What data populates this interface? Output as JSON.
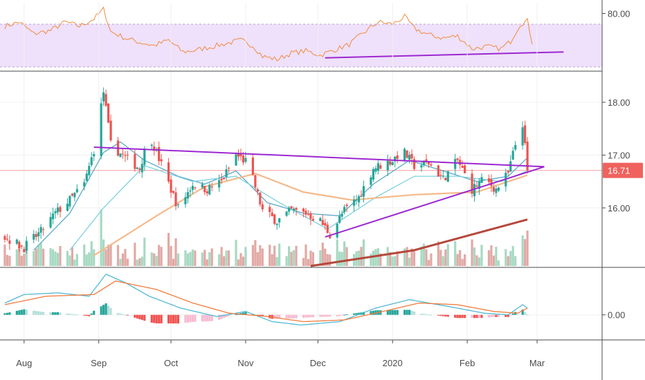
{
  "chart_data": [
    {
      "panel": "rsi",
      "type": "line",
      "y_tick_labels": [
        "80.00"
      ],
      "y_ticks": [
        80
      ],
      "ylim": [
        28,
        90
      ],
      "band": [
        30,
        70
      ],
      "band_color": "#efe0fb",
      "line_color": "#f08a3c",
      "trendline": {
        "x": [
          "2019-12-04",
          "2020-03-12"
        ],
        "y": [
          38.5,
          44.0
        ],
        "color": "#9c27d0"
      },
      "series": [
        {
          "x": "2019-07-24",
          "y": 68
        },
        {
          "x": "2019-07-30",
          "y": 72
        },
        {
          "x": "2019-08-05",
          "y": 61
        },
        {
          "x": "2019-08-12",
          "y": 64
        },
        {
          "x": "2019-08-18",
          "y": 72
        },
        {
          "x": "2019-08-24",
          "y": 68
        },
        {
          "x": "2019-08-30",
          "y": 75
        },
        {
          "x": "2019-09-03",
          "y": 84
        },
        {
          "x": "2019-09-06",
          "y": 63
        },
        {
          "x": "2019-09-12",
          "y": 57
        },
        {
          "x": "2019-09-18",
          "y": 53
        },
        {
          "x": "2019-09-24",
          "y": 50
        },
        {
          "x": "2019-09-30",
          "y": 55
        },
        {
          "x": "2019-10-06",
          "y": 44
        },
        {
          "x": "2019-10-12",
          "y": 46
        },
        {
          "x": "2019-10-18",
          "y": 49
        },
        {
          "x": "2019-10-24",
          "y": 52
        },
        {
          "x": "2019-10-30",
          "y": 55
        },
        {
          "x": "2019-11-04",
          "y": 50
        },
        {
          "x": "2019-11-08",
          "y": 40
        },
        {
          "x": "2019-11-14",
          "y": 37
        },
        {
          "x": "2019-11-20",
          "y": 43
        },
        {
          "x": "2019-11-26",
          "y": 45
        },
        {
          "x": "2019-12-02",
          "y": 41
        },
        {
          "x": "2019-12-08",
          "y": 46
        },
        {
          "x": "2019-12-14",
          "y": 51
        },
        {
          "x": "2019-12-20",
          "y": 62
        },
        {
          "x": "2019-12-26",
          "y": 72
        },
        {
          "x": "2020-01-01",
          "y": 70
        },
        {
          "x": "2020-01-06",
          "y": 77
        },
        {
          "x": "2020-01-10",
          "y": 66
        },
        {
          "x": "2020-01-16",
          "y": 60
        },
        {
          "x": "2020-01-22",
          "y": 57
        },
        {
          "x": "2020-01-28",
          "y": 59
        },
        {
          "x": "2020-02-03",
          "y": 47
        },
        {
          "x": "2020-02-09",
          "y": 49
        },
        {
          "x": "2020-02-15",
          "y": 47
        },
        {
          "x": "2020-02-19",
          "y": 54
        },
        {
          "x": "2020-02-23",
          "y": 70
        },
        {
          "x": "2020-02-26",
          "y": 73
        },
        {
          "x": "2020-02-28",
          "y": 53
        }
      ]
    },
    {
      "panel": "price",
      "type": "candlestick",
      "y_tick_labels": [
        "18.00",
        "17.00",
        "16.00"
      ],
      "y_ticks": [
        18,
        17,
        16
      ],
      "ylim": [
        14.9,
        18.55
      ],
      "last_price_label": "16.71",
      "last_price": 16.71,
      "up_color": "#26a69a",
      "down_color": "#ef5350",
      "last_price_color": "#f0625d",
      "anchors": [
        {
          "x": "2019-07-24",
          "close": 15.45
        },
        {
          "x": "2019-08-01",
          "close": 15.25
        },
        {
          "x": "2019-08-08",
          "close": 15.55
        },
        {
          "x": "2019-08-14",
          "close": 15.9
        },
        {
          "x": "2019-08-20",
          "close": 16.15
        },
        {
          "x": "2019-08-26",
          "close": 16.45
        },
        {
          "x": "2019-08-30",
          "close": 17.1
        },
        {
          "x": "2019-09-03",
          "close": 18.2
        },
        {
          "x": "2019-09-06",
          "close": 17.2
        },
        {
          "x": "2019-09-12",
          "close": 16.95
        },
        {
          "x": "2019-09-18",
          "close": 16.75
        },
        {
          "x": "2019-09-22",
          "close": 17.4
        },
        {
          "x": "2019-09-28",
          "close": 16.7
        },
        {
          "x": "2019-10-04",
          "close": 16.0
        },
        {
          "x": "2019-10-10",
          "close": 16.45
        },
        {
          "x": "2019-10-16",
          "close": 16.35
        },
        {
          "x": "2019-10-22",
          "close": 16.5
        },
        {
          "x": "2019-10-28",
          "close": 17.0
        },
        {
          "x": "2019-11-02",
          "close": 16.85
        },
        {
          "x": "2019-11-08",
          "close": 15.95
        },
        {
          "x": "2019-11-14",
          "close": 15.75
        },
        {
          "x": "2019-11-20",
          "close": 15.95
        },
        {
          "x": "2019-11-26",
          "close": 15.9
        },
        {
          "x": "2019-12-02",
          "close": 15.75
        },
        {
          "x": "2019-12-06",
          "close": 15.5
        },
        {
          "x": "2019-12-12",
          "close": 15.95
        },
        {
          "x": "2019-12-18",
          "close": 16.2
        },
        {
          "x": "2019-12-24",
          "close": 16.75
        },
        {
          "x": "2020-01-01",
          "close": 16.9
        },
        {
          "x": "2020-01-05",
          "close": 17.1
        },
        {
          "x": "2020-01-10",
          "close": 16.8
        },
        {
          "x": "2020-01-16",
          "close": 16.85
        },
        {
          "x": "2020-01-22",
          "close": 16.55
        },
        {
          "x": "2020-01-28",
          "close": 16.9
        },
        {
          "x": "2020-02-03",
          "close": 16.35
        },
        {
          "x": "2020-02-08",
          "close": 16.55
        },
        {
          "x": "2020-02-13",
          "close": 16.35
        },
        {
          "x": "2020-02-18",
          "close": 16.65
        },
        {
          "x": "2020-02-21",
          "close": 17.2
        },
        {
          "x": "2020-02-24",
          "close": 17.6
        },
        {
          "x": "2020-02-26",
          "close": 16.71
        }
      ],
      "moving_averages": [
        {
          "color": "#5aa9c8",
          "points": [
            {
              "x": "2019-08-05",
              "y": 15.2
            },
            {
              "x": "2019-08-20",
              "y": 15.9
            },
            {
              "x": "2019-09-03",
              "y": 17.05
            },
            {
              "x": "2019-09-10",
              "y": 17.25
            },
            {
              "x": "2019-09-20",
              "y": 16.9
            },
            {
              "x": "2019-10-04",
              "y": 16.6
            },
            {
              "x": "2019-10-15",
              "y": 16.45
            },
            {
              "x": "2019-10-28",
              "y": 16.7
            },
            {
              "x": "2019-11-10",
              "y": 16.1
            },
            {
              "x": "2019-11-25",
              "y": 15.9
            },
            {
              "x": "2019-12-10",
              "y": 15.85
            },
            {
              "x": "2019-12-24",
              "y": 16.45
            },
            {
              "x": "2020-01-08",
              "y": 16.9
            },
            {
              "x": "2020-01-22",
              "y": 16.7
            },
            {
              "x": "2020-02-05",
              "y": 16.5
            },
            {
              "x": "2020-02-18",
              "y": 16.6
            },
            {
              "x": "2020-02-26",
              "y": 16.95
            }
          ]
        },
        {
          "color": "#7ed0e0",
          "points": [
            {
              "x": "2019-08-20",
              "y": 15.2
            },
            {
              "x": "2019-09-03",
              "y": 16.0
            },
            {
              "x": "2019-09-20",
              "y": 16.8
            },
            {
              "x": "2019-10-10",
              "y": 16.5
            },
            {
              "x": "2019-10-28",
              "y": 16.6
            },
            {
              "x": "2019-11-15",
              "y": 16.1
            },
            {
              "x": "2019-12-05",
              "y": 15.6
            },
            {
              "x": "2019-12-25",
              "y": 16.2
            },
            {
              "x": "2020-01-10",
              "y": 16.6
            },
            {
              "x": "2020-01-28",
              "y": 16.6
            },
            {
              "x": "2020-02-15",
              "y": 16.5
            },
            {
              "x": "2020-02-26",
              "y": 16.7
            }
          ]
        },
        {
          "color": "#f5b98a",
          "points": [
            {
              "x": "2019-08-30",
              "y": 15.1
            },
            {
              "x": "2019-09-25",
              "y": 15.85
            },
            {
              "x": "2019-10-15",
              "y": 16.4
            },
            {
              "x": "2019-11-05",
              "y": 16.65
            },
            {
              "x": "2019-11-25",
              "y": 16.3
            },
            {
              "x": "2019-12-15",
              "y": 16.15
            },
            {
              "x": "2020-01-10",
              "y": 16.25
            },
            {
              "x": "2020-02-05",
              "y": 16.3
            },
            {
              "x": "2020-02-26",
              "y": 16.62
            }
          ]
        },
        {
          "color": "#b5473b",
          "points": [
            {
              "x": "2019-11-28",
              "y": 14.9
            },
            {
              "x": "2020-01-10",
              "y": 15.2
            },
            {
              "x": "2020-02-26",
              "y": 15.78
            }
          ]
        }
      ],
      "trendlines": [
        {
          "color": "#9c27d0",
          "x": [
            "2019-08-30",
            "2020-03-04"
          ],
          "y": [
            17.15,
            16.78
          ]
        },
        {
          "color": "#9c27d0",
          "x": [
            "2019-12-04",
            "2020-03-04"
          ],
          "y": [
            15.45,
            16.78
          ]
        }
      ],
      "volume_colors": {
        "up": "#a7d9c2",
        "down": "#e2a9a5"
      }
    },
    {
      "panel": "macd",
      "type": "line",
      "y_tick_labels": [
        "0.00"
      ],
      "y_ticks": [
        0
      ],
      "ylim": [
        -0.7,
        1.3
      ],
      "macd_color": "#4fb8d4",
      "signal_color": "#f07a3a",
      "macd": [
        {
          "x": "2019-07-24",
          "y": 0.35
        },
        {
          "x": "2019-08-01",
          "y": 0.6
        },
        {
          "x": "2019-08-15",
          "y": 0.65
        },
        {
          "x": "2019-08-28",
          "y": 0.55
        },
        {
          "x": "2019-09-04",
          "y": 1.2
        },
        {
          "x": "2019-09-12",
          "y": 0.95
        },
        {
          "x": "2019-09-22",
          "y": 0.55
        },
        {
          "x": "2019-10-05",
          "y": 0.2
        },
        {
          "x": "2019-10-20",
          "y": -0.05
        },
        {
          "x": "2019-11-01",
          "y": 0.1
        },
        {
          "x": "2019-11-12",
          "y": -0.2
        },
        {
          "x": "2019-11-24",
          "y": -0.3
        },
        {
          "x": "2019-12-10",
          "y": -0.2
        },
        {
          "x": "2019-12-25",
          "y": 0.2
        },
        {
          "x": "2020-01-08",
          "y": 0.45
        },
        {
          "x": "2020-01-24",
          "y": 0.25
        },
        {
          "x": "2020-02-08",
          "y": 0.05
        },
        {
          "x": "2020-02-18",
          "y": 0.0
        },
        {
          "x": "2020-02-24",
          "y": 0.3
        },
        {
          "x": "2020-02-26",
          "y": 0.2
        }
      ],
      "signal": [
        {
          "x": "2019-07-24",
          "y": 0.3
        },
        {
          "x": "2019-08-10",
          "y": 0.55
        },
        {
          "x": "2019-08-30",
          "y": 0.6
        },
        {
          "x": "2019-09-08",
          "y": 1.0
        },
        {
          "x": "2019-09-25",
          "y": 0.75
        },
        {
          "x": "2019-10-10",
          "y": 0.35
        },
        {
          "x": "2019-10-25",
          "y": 0.05
        },
        {
          "x": "2019-11-10",
          "y": -0.05
        },
        {
          "x": "2019-11-25",
          "y": -0.2
        },
        {
          "x": "2019-12-12",
          "y": -0.15
        },
        {
          "x": "2019-12-28",
          "y": 0.1
        },
        {
          "x": "2020-01-12",
          "y": 0.35
        },
        {
          "x": "2020-01-28",
          "y": 0.3
        },
        {
          "x": "2020-02-12",
          "y": 0.1
        },
        {
          "x": "2020-02-22",
          "y": 0.05
        },
        {
          "x": "2020-02-26",
          "y": 0.2
        }
      ],
      "histogram_colors": {
        "pos_strong": "#26a69a",
        "pos_weak": "#b2dfdb",
        "neg_strong": "#ef5350",
        "neg_weak": "#f8bbd0"
      }
    }
  ],
  "x_axis": {
    "labels": [
      "Aug",
      "Sep",
      "Oct",
      "Nov",
      "Dec",
      "2020",
      "Feb",
      "Mar"
    ],
    "dates": [
      "2019-08-01",
      "2019-09-01",
      "2019-10-01",
      "2019-11-01",
      "2019-12-01",
      "2020-01-01",
      "2020-02-01",
      "2020-03-01"
    ],
    "xlim": [
      "2019-07-22",
      "2020-03-28"
    ]
  }
}
